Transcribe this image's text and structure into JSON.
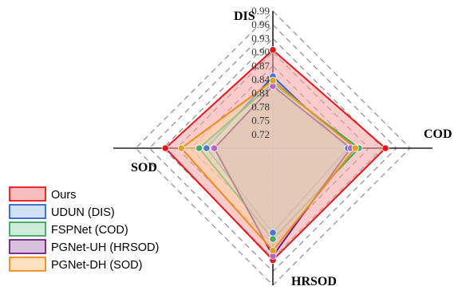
{
  "chart_data": {
    "type": "radar",
    "axes": [
      "DIS",
      "COD",
      "HRSOD",
      "SOD"
    ],
    "tick_labels": [
      "0.72",
      "0.75",
      "0.78",
      "0.81",
      "0.84",
      "0.87",
      "0.90",
      "0.93",
      "0.96",
      "0.99"
    ],
    "range": [
      0.69,
      0.99
    ],
    "series": [
      {
        "name": "Ours",
        "values": [
          0.905,
          0.936,
          0.935,
          0.925
        ],
        "fill": "#f4a0a0",
        "stroke": "#e8161b",
        "marker": "#e8161b"
      },
      {
        "name": "UDUN (DIS)",
        "values": [
          0.847,
          0.854,
          0.875,
          0.835
        ],
        "fill": "#bcd4f2",
        "stroke": "#2e63c9",
        "marker": "#4a78d0"
      },
      {
        "name": "FSPNet (COD)",
        "values": [
          0.832,
          0.878,
          0.889,
          0.851
        ],
        "fill": "#b9e3c9",
        "stroke": "#38a85c",
        "marker": "#4aa865"
      },
      {
        "name": "PGNet-UH (HRSOD)",
        "values": [
          0.826,
          0.86,
          0.926,
          0.818
        ],
        "fill": "#c7a6cf",
        "stroke": "#6f1f80",
        "marker": "#b464c8"
      },
      {
        "name": "PGNet-DH (SOD)",
        "values": [
          0.838,
          0.87,
          0.914,
          0.89
        ],
        "fill": "#fbd4a6",
        "stroke": "#f08a1a",
        "marker": "#e0a020"
      }
    ]
  }
}
